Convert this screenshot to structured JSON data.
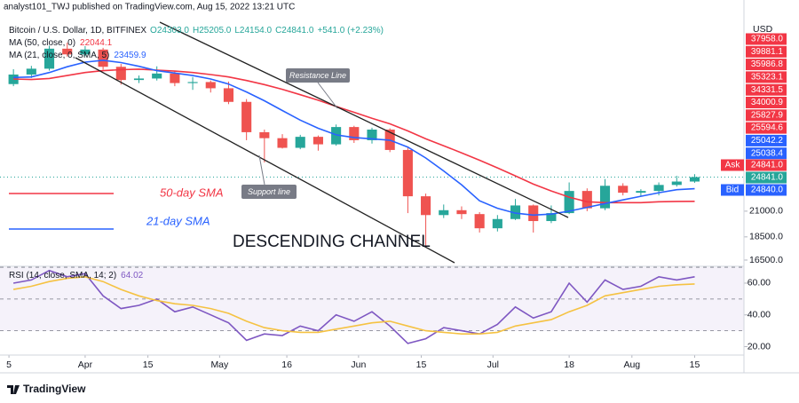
{
  "page": {
    "publisher": "analyst101_TWJ published on TradingView.com, Aug 15, 2022 13:21 UTC",
    "brand": "TradingView",
    "currency": "USD"
  },
  "annotations": {
    "resistance": "Resistance Line",
    "support": "Support line",
    "channel": "DESCENDING CHANNEL",
    "sma50": "50-day SMA",
    "sma21": "21-day SMA"
  },
  "chart_data": [
    {
      "type": "candlestick",
      "title": "Bitcoin / U.S. Dollar, 1D, BITFINEX",
      "ohlc_legend": [
        "O24303.0",
        "H25205.0",
        "L24154.0",
        "C24841.0",
        "+541.0 (+2.23%)"
      ],
      "x": [
        "2022-03-16",
        "2022-03-20",
        "2022-03-24",
        "2022-03-28",
        "2022-04-01",
        "2022-04-05",
        "2022-04-09",
        "2022-04-13",
        "2022-04-17",
        "2022-04-21",
        "2022-04-25",
        "2022-04-29",
        "2022-05-03",
        "2022-05-07",
        "2022-05-11",
        "2022-05-15",
        "2022-05-19",
        "2022-05-23",
        "2022-05-27",
        "2022-05-31",
        "2022-06-04",
        "2022-06-08",
        "2022-06-12",
        "2022-06-16",
        "2022-06-20",
        "2022-06-24",
        "2022-06-28",
        "2022-07-02",
        "2022-07-06",
        "2022-07-10",
        "2022-07-14",
        "2022-07-18",
        "2022-07-22",
        "2022-07-26",
        "2022-07-30",
        "2022-08-03",
        "2022-08-07",
        "2022-08-11",
        "2022-08-15"
      ],
      "open": [
        39300,
        41200,
        42400,
        46800,
        45500,
        46600,
        42800,
        40100,
        40400,
        41400,
        39500,
        39700,
        38500,
        36000,
        31000,
        30100,
        28700,
        30300,
        29200,
        31800,
        29800,
        31400,
        28400,
        22600,
        20600,
        21100,
        20700,
        19300,
        20200,
        21600,
        20000,
        20800,
        23200,
        21300,
        23800,
        23000,
        23200,
        23900,
        24303
      ],
      "high": [
        42300,
        43000,
        47500,
        48200,
        47400,
        47000,
        43400,
        41000,
        42900,
        42000,
        40700,
        40000,
        39800,
        36500,
        31400,
        30700,
        30600,
        30500,
        32200,
        32000,
        31700,
        31600,
        28700,
        22900,
        21700,
        21500,
        20900,
        20600,
        22300,
        21700,
        21600,
        24200,
        23500,
        24600,
        24100,
        23400,
        24200,
        25000,
        25205
      ],
      "low": [
        38900,
        40500,
        42000,
        45000,
        45100,
        42200,
        39200,
        39500,
        40000,
        38900,
        38200,
        37700,
        35600,
        29800,
        26700,
        28600,
        28500,
        28300,
        29000,
        29400,
        29300,
        28100,
        20800,
        17600,
        20300,
        20200,
        18900,
        19000,
        20100,
        18900,
        19800,
        20700,
        21000,
        21100,
        22700,
        22600,
        22700,
        23700,
        24154
      ],
      "close": [
        41200,
        42400,
        46800,
        45500,
        46600,
        42800,
        40100,
        40400,
        41400,
        39500,
        39700,
        38500,
        36000,
        31000,
        30100,
        28700,
        30300,
        29200,
        31800,
        29800,
        31400,
        28400,
        22600,
        20600,
        21100,
        20700,
        19300,
        20200,
        21600,
        20000,
        20800,
        23200,
        21300,
        23800,
        23000,
        23200,
        23900,
        24303,
        24841
      ],
      "up_color": "#26a69a",
      "down_color": "#ef5350",
      "series": [
        {
          "name": "MA (50, close, 0)",
          "color": "#f23645",
          "values": [
            40300,
            40200,
            40400,
            41000,
            41600,
            42000,
            42200,
            42300,
            42100,
            41900,
            41600,
            41200,
            40700,
            40000,
            39200,
            38300,
            37300,
            36300,
            35200,
            34200,
            33200,
            32300,
            31200,
            30000,
            29000,
            28000,
            27000,
            26000,
            25000,
            24000,
            23200,
            22500,
            22000,
            21900,
            21900,
            21900,
            22000,
            22030,
            22044.1
          ]
        },
        {
          "name": "MA (21, close, 0, SMA, 5)",
          "color": "#2962ff",
          "values": [
            40600,
            40700,
            41600,
            42800,
            43800,
            44200,
            43700,
            42900,
            42000,
            41500,
            41000,
            40300,
            39300,
            37800,
            36200,
            34500,
            32900,
            31600,
            30600,
            30200,
            30000,
            29800,
            28800,
            27300,
            25600,
            23900,
            22100,
            21300,
            20800,
            20600,
            20700,
            21000,
            21400,
            21800,
            22200,
            22600,
            23000,
            23350,
            23459.9
          ]
        }
      ],
      "xlim": [
        "2022-03-13",
        "2022-08-26"
      ],
      "ylim": [
        16000,
        59500
      ],
      "log_scale": true,
      "yticks": [
        {
          "value": 21000,
          "label": "21000.0"
        },
        {
          "value": 18500,
          "label": "18500.0"
        },
        {
          "value": 16500,
          "label": "16500.0"
        }
      ],
      "price_labels": [
        {
          "label": "37958.0",
          "color": "#f23645"
        },
        {
          "label": "39881.1",
          "color": "#f23645"
        },
        {
          "label": "35986.8",
          "color": "#f23645"
        },
        {
          "label": "35323.1",
          "color": "#f23645"
        },
        {
          "label": "34331.5",
          "color": "#f23645"
        },
        {
          "label": "34000.9",
          "color": "#f23645"
        },
        {
          "label": "25827.9",
          "color": "#f23645"
        },
        {
          "label": "25594.6",
          "color": "#f23645"
        },
        {
          "label": "25042.2",
          "color": "#2962ff"
        },
        {
          "label": "25038.4",
          "color": "#2962ff"
        }
      ],
      "quote_labels": [
        {
          "name": "Ask",
          "label": "24841.0",
          "color": "#f23645"
        },
        {
          "label": "24841.0",
          "color": "#26a69a"
        },
        {
          "name": "Bid",
          "label": "24840.0",
          "color": "#2962ff"
        }
      ]
    },
    {
      "type": "line",
      "title": "RSI (14, close, SMA, 14; 2)",
      "series": [
        {
          "color": "#7e57c2",
          "values": [
            60,
            62,
            68,
            64,
            66,
            52,
            44,
            46,
            50,
            42,
            45,
            40,
            35,
            24,
            28,
            27,
            33,
            30,
            40,
            36,
            42,
            33,
            22,
            25,
            32,
            30,
            28,
            34,
            45,
            38,
            42,
            60,
            48,
            62,
            56,
            58,
            64,
            62,
            64.02
          ]
        },
        {
          "color": "#f5c242",
          "values": [
            56,
            58,
            61,
            63,
            64,
            61,
            56,
            52,
            49,
            47,
            46,
            44,
            41,
            36,
            32,
            30,
            29,
            29,
            31,
            33,
            35,
            36,
            33,
            30,
            29,
            28,
            28,
            29,
            33,
            35,
            37,
            42,
            46,
            52,
            54,
            56,
            58,
            59,
            59.5
          ]
        }
      ],
      "levels": [
        30,
        50,
        70
      ],
      "band_color": "#7e57c2",
      "xlim": [
        "2022-03-13",
        "2022-08-26"
      ],
      "ylim": [
        14.7,
        70.6
      ],
      "yticks": [
        {
          "value": 60,
          "label": "60.00"
        },
        {
          "value": 40,
          "label": "40.00"
        },
        {
          "value": 20,
          "label": "20.00"
        }
      ],
      "xticks": [
        {
          "value": "2022-03-15",
          "label": "5"
        },
        {
          "value": "2022-04-01",
          "label": "Apr"
        },
        {
          "value": "2022-04-15",
          "label": "15"
        },
        {
          "value": "2022-05-01",
          "label": "May"
        },
        {
          "value": "2022-05-16",
          "label": "16"
        },
        {
          "value": "2022-06-01",
          "label": "Jun"
        },
        {
          "value": "2022-06-15",
          "label": "15"
        },
        {
          "value": "2022-07-01",
          "label": "Jul"
        },
        {
          "value": "2022-07-18",
          "label": "18"
        },
        {
          "value": "2022-08-01",
          "label": "Aug"
        },
        {
          "value": "2022-08-15",
          "label": "15"
        }
      ]
    }
  ]
}
